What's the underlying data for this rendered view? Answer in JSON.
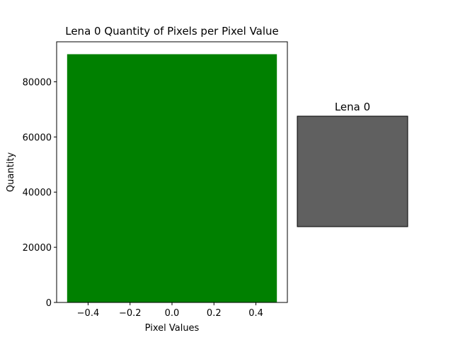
{
  "chart_data": [
    {
      "type": "bar",
      "title": "Lena 0 Quantity of Pixels per Pixel Value",
      "xlabel": "Pixel Values",
      "ylabel": "Quantity",
      "x": [
        0
      ],
      "values": [
        90000
      ],
      "bar_width": 1.0,
      "bar_color": "#008000",
      "xlim": [
        -0.55,
        0.55
      ],
      "ylim": [
        0,
        94500
      ],
      "xticks": [
        -0.4,
        -0.2,
        0.0,
        0.2,
        0.4
      ],
      "xtick_labels": [
        "−0.4",
        "−0.2",
        "0.0",
        "0.2",
        "0.4"
      ],
      "yticks": [
        0,
        20000,
        40000,
        60000,
        80000
      ],
      "ytick_labels": [
        "0",
        "20000",
        "40000",
        "60000",
        "80000"
      ],
      "grid": false,
      "legend": "none"
    },
    {
      "type": "image",
      "title": "Lena 0",
      "fill_color": "#606060",
      "axes": "off"
    }
  ]
}
